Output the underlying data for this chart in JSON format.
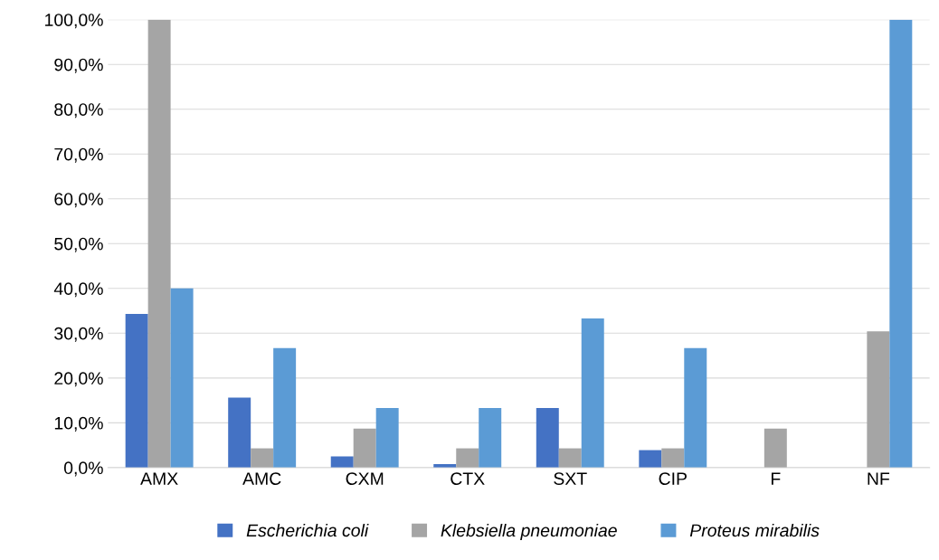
{
  "chart_data": {
    "type": "bar",
    "categories": [
      "AMX",
      "AMC",
      "CXM",
      "CTX",
      "SXT",
      "CIP",
      "F",
      "NF"
    ],
    "series": [
      {
        "name": "Escherichia coli",
        "color": "#4472c4",
        "values": [
          34.3,
          15.6,
          2.5,
          0.8,
          13.3,
          3.9,
          0,
          0
        ]
      },
      {
        "name": "Klebsiella pneumoniae",
        "color": "#a5a5a5",
        "values": [
          100,
          4.3,
          8.7,
          4.3,
          4.3,
          4.3,
          8.7,
          30.4
        ]
      },
      {
        "name": "Proteus mirabilis",
        "color": "#5b9bd5",
        "values": [
          40,
          26.7,
          13.3,
          13.3,
          33.3,
          26.7,
          0,
          100
        ]
      }
    ],
    "ylim": [
      0,
      100
    ],
    "yticks": [
      {
        "value": 0,
        "label": "0,0%"
      },
      {
        "value": 10,
        "label": "10,0%"
      },
      {
        "value": 20,
        "label": "20,0%"
      },
      {
        "value": 30,
        "label": "30,0%"
      },
      {
        "value": 40,
        "label": "40,0%"
      },
      {
        "value": 50,
        "label": "50,0%"
      },
      {
        "value": 60,
        "label": "60,0%"
      },
      {
        "value": 70,
        "label": "70,0%"
      },
      {
        "value": 80,
        "label": "80,0%"
      },
      {
        "value": 90,
        "label": "90,0%"
      },
      {
        "value": 100,
        "label": "100,0%"
      }
    ],
    "grid": "y",
    "legend": "bottom"
  }
}
